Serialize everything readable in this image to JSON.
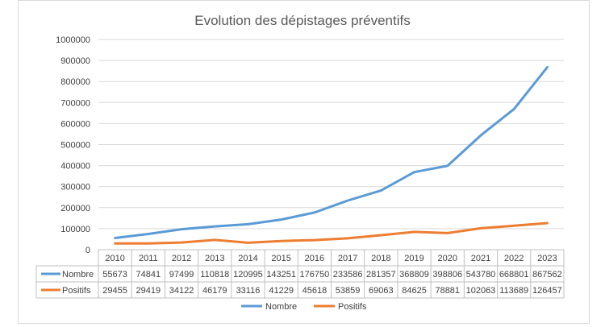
{
  "chart_data": {
    "type": "line",
    "title": "Evolution des dépistages préventifs",
    "categories": [
      "2010",
      "2011",
      "2012",
      "2013",
      "2014",
      "2015",
      "2016",
      "2017",
      "2018",
      "2019",
      "2020",
      "2021",
      "2022",
      "2023"
    ],
    "series": [
      {
        "name": "Nombre",
        "color": "#5b9bd5",
        "values": [
          55673,
          74841,
          97499,
          110818,
          120995,
          143251,
          176750,
          233586,
          281357,
          368809,
          398806,
          543780,
          668801,
          867562
        ]
      },
      {
        "name": "Positifs",
        "color": "#ed7d31",
        "values": [
          29455,
          29419,
          34122,
          46179,
          33116,
          41229,
          45618,
          53859,
          69063,
          84625,
          78881,
          102063,
          113689,
          126457
        ]
      }
    ],
    "ylim": [
      0,
      1000000
    ],
    "yticks": [
      0,
      100000,
      200000,
      300000,
      400000,
      500000,
      600000,
      700000,
      800000,
      900000,
      1000000
    ],
    "grid": true,
    "legend": "bottom",
    "data_table": true
  }
}
